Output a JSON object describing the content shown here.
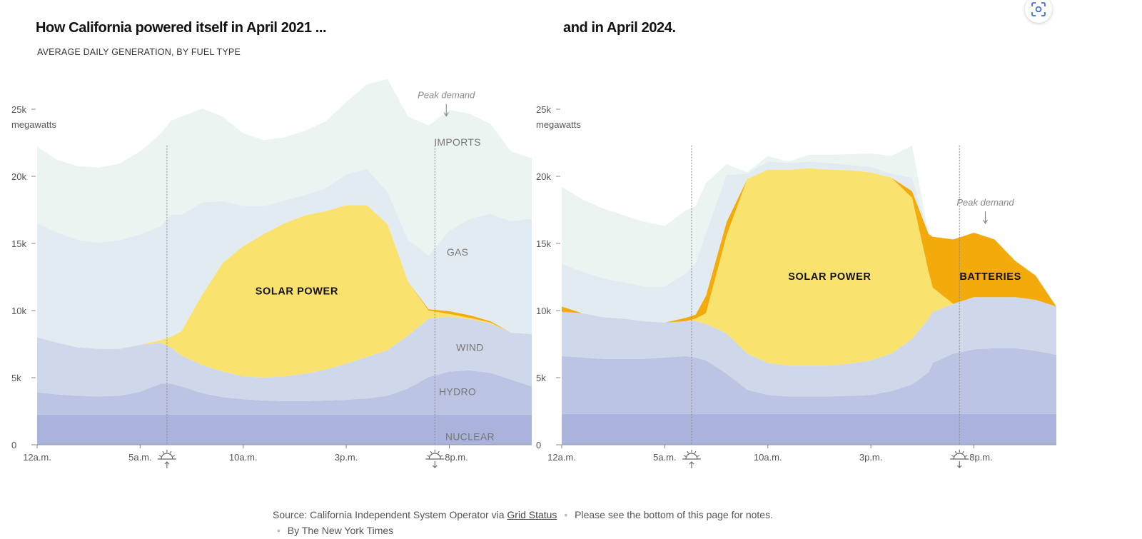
{
  "titles": {
    "left": "How California powered itself in April 2021 ...",
    "right": "and in April 2024."
  },
  "subtitle": "AVERAGE DAILY GENERATION, BY FUEL TYPE",
  "source": {
    "prefix": "Source: California Independent System Operator via",
    "link": "Grid Status",
    "notes": "Please see the bottom of this page for notes.",
    "byline": "By The New York Times"
  },
  "scan_icon": "screenshot-scan-icon",
  "colors": {
    "nuclear": "#a9b3dc",
    "hydro": "#bcc4e3",
    "wind": "#cfd7ea",
    "solar": "#fae26e",
    "batteries": "#f2ab0a",
    "gas": "#e2ebf1",
    "imports": "#ebf4f1"
  },
  "chart_data": [
    {
      "type": "area",
      "stacked": true,
      "title": "How California powered itself in April 2021 ...",
      "subtitle": "AVERAGE DAILY GENERATION, BY FUEL TYPE",
      "ylabel": "megawatts",
      "ylim": [
        0,
        27500
      ],
      "x_range": [
        0,
        24
      ],
      "y_ticks": [
        {
          "value": 0,
          "label": "0"
        },
        {
          "value": 5000,
          "label": "5k"
        },
        {
          "value": 10000,
          "label": "10k"
        },
        {
          "value": 15000,
          "label": "15k"
        },
        {
          "value": 20000,
          "label": "20k"
        },
        {
          "value": 25000,
          "label": "25k"
        }
      ],
      "x_ticks": [
        {
          "value": 0,
          "label": "12a.m."
        },
        {
          "value": 5,
          "label": "5a.m."
        },
        {
          "value": 10,
          "label": "10a.m."
        },
        {
          "value": 15,
          "label": "3p.m."
        },
        {
          "value": 20,
          "label": "8p.m."
        }
      ],
      "sunrise": 6.3,
      "sunset": 19.3,
      "peak_demand": {
        "x": 19.3,
        "label": "Peak demand"
      },
      "x": [
        0,
        1,
        2,
        3,
        4,
        5,
        6,
        6.5,
        7,
        8,
        9,
        10,
        11,
        12,
        13,
        14,
        15,
        16,
        17,
        18,
        19,
        20,
        21,
        22,
        23,
        24
      ],
      "series": [
        {
          "name": "Nuclear",
          "values": [
            2250,
            2250,
            2250,
            2250,
            2250,
            2250,
            2250,
            2250,
            2250,
            2250,
            2250,
            2250,
            2250,
            2250,
            2250,
            2250,
            2250,
            2250,
            2250,
            2250,
            2250,
            2250,
            2250,
            2250,
            2250,
            2250
          ]
        },
        {
          "name": "Hydro",
          "values": [
            1650,
            1500,
            1400,
            1350,
            1400,
            1700,
            2300,
            2300,
            2100,
            1600,
            1300,
            1150,
            1050,
            1000,
            1000,
            1050,
            1100,
            1200,
            1400,
            1950,
            2800,
            3200,
            3300,
            3100,
            2600,
            2100
          ]
        },
        {
          "name": "Wind",
          "values": [
            4100,
            3850,
            3600,
            3550,
            3500,
            3500,
            3050,
            2700,
            2300,
            2100,
            1900,
            1700,
            1700,
            1850,
            2050,
            2300,
            2700,
            3100,
            3400,
            3950,
            4350,
            4100,
            3800,
            3700,
            3500,
            3900
          ]
        },
        {
          "name": "Solar",
          "values": [
            0,
            0,
            0,
            0,
            0,
            0,
            200,
            800,
            1800,
            5200,
            8100,
            9700,
            10700,
            11400,
            11800,
            11800,
            11800,
            11300,
            9400,
            4000,
            600,
            200,
            100,
            50,
            0,
            0
          ]
        },
        {
          "name": "Batteries",
          "values": [
            0,
            0,
            0,
            0,
            0,
            0,
            0,
            0,
            0,
            0,
            0,
            0,
            0,
            0,
            0,
            0,
            0,
            0,
            0,
            0,
            100,
            200,
            200,
            100,
            0,
            0
          ]
        },
        {
          "name": "Gas",
          "values": [
            8500,
            8200,
            8000,
            7900,
            8100,
            8200,
            8500,
            9100,
            8700,
            6900,
            4600,
            3000,
            2100,
            1700,
            1500,
            1700,
            2300,
            2700,
            2400,
            3100,
            4000,
            6000,
            7200,
            8000,
            8300,
            8600
          ]
        },
        {
          "name": "Imports",
          "values": [
            5700,
            5400,
            5500,
            5600,
            5700,
            6200,
            6900,
            7000,
            7300,
            7000,
            6300,
            5400,
            4900,
            4700,
            4800,
            5000,
            5400,
            6300,
            8400,
            9200,
            9700,
            9000,
            7800,
            6700,
            5200,
            4500
          ]
        }
      ],
      "annotations": [
        {
          "text": "IMPORTS",
          "x": 20.4,
          "y": 22300
        },
        {
          "text": "GAS",
          "x": 20.4,
          "y": 14100
        },
        {
          "text": "SOLAR POWER",
          "x": 12.6,
          "y": 11200
        },
        {
          "text": "WIND",
          "x": 21.0,
          "y": 7000
        },
        {
          "text": "HYDRO",
          "x": 20.4,
          "y": 3700
        },
        {
          "text": "NUCLEAR",
          "x": 21.0,
          "y": 350
        }
      ]
    },
    {
      "type": "area",
      "stacked": true,
      "title": "and in April 2024.",
      "ylabel": "megawatts",
      "ylim": [
        0,
        27500
      ],
      "x_range": [
        0,
        24
      ],
      "y_ticks": [
        {
          "value": 0,
          "label": "0"
        },
        {
          "value": 5000,
          "label": "5k"
        },
        {
          "value": 10000,
          "label": "10k"
        },
        {
          "value": 15000,
          "label": "15k"
        },
        {
          "value": 20000,
          "label": "20k"
        },
        {
          "value": 25000,
          "label": "25k"
        }
      ],
      "x_ticks": [
        {
          "value": 0,
          "label": "12a.m."
        },
        {
          "value": 5,
          "label": "5a.m."
        },
        {
          "value": 10,
          "label": "10a.m."
        },
        {
          "value": 15,
          "label": "3p.m."
        },
        {
          "value": 20,
          "label": "8p.m."
        }
      ],
      "sunrise": 6.3,
      "sunset": 19.3,
      "peak_demand": {
        "x": 20.0,
        "label": "Peak demand"
      },
      "x": [
        0,
        1,
        2,
        3,
        4,
        5,
        6,
        6.5,
        7,
        8,
        9,
        10,
        11,
        12,
        13,
        14,
        15,
        16,
        17,
        17.8,
        18,
        19,
        20,
        21,
        22,
        23,
        24
      ],
      "series": [
        {
          "name": "Nuclear",
          "values": [
            2300,
            2300,
            2300,
            2300,
            2300,
            2300,
            2300,
            2300,
            2300,
            2300,
            2300,
            2300,
            2300,
            2300,
            2300,
            2300,
            2300,
            2300,
            2300,
            2300,
            2300,
            2300,
            2300,
            2300,
            2300,
            2300,
            2300
          ]
        },
        {
          "name": "Hydro",
          "values": [
            4300,
            4200,
            4100,
            4100,
            4100,
            4200,
            4300,
            4200,
            4000,
            3000,
            1800,
            1400,
            1300,
            1300,
            1300,
            1350,
            1400,
            1700,
            2200,
            3100,
            3800,
            4500,
            4800,
            4900,
            4900,
            4700,
            4400
          ]
        },
        {
          "name": "Wind",
          "values": [
            3300,
            3300,
            3100,
            3000,
            2800,
            2600,
            2600,
            2700,
            2700,
            3000,
            2700,
            2400,
            2300,
            2300,
            2300,
            2400,
            2600,
            2800,
            3400,
            4000,
            3800,
            3700,
            3900,
            3800,
            3800,
            3800,
            3600
          ]
        },
        {
          "name": "Solar",
          "values": [
            0,
            0,
            0,
            0,
            0,
            0,
            0,
            200,
            800,
            7300,
            13000,
            14400,
            14600,
            14700,
            14600,
            14400,
            14000,
            13100,
            10500,
            3500,
            1800,
            0,
            0,
            0,
            0,
            0,
            0
          ]
        },
        {
          "name": "Batteries",
          "values": [
            400,
            0,
            0,
            0,
            0,
            0,
            250,
            300,
            1300,
            1000,
            0,
            0,
            0,
            0,
            0,
            0,
            0,
            0,
            500,
            2800,
            3800,
            4800,
            4800,
            4300,
            2700,
            1800,
            0
          ]
        },
        {
          "name": "Gas",
          "values": [
            3200,
            3100,
            2900,
            2700,
            2600,
            2700,
            3300,
            3800,
            4700,
            3500,
            400,
            600,
            500,
            500,
            500,
            400,
            400,
            300,
            1000,
            0,
            0,
            0,
            0,
            0,
            0,
            0,
            0
          ]
        },
        {
          "name": "Imports",
          "values": [
            5700,
            5400,
            5200,
            5000,
            4800,
            4500,
            4700,
            4300,
            3700,
            800,
            100,
            400,
            100,
            500,
            600,
            800,
            1000,
            1300,
            2400,
            0,
            0,
            0,
            0,
            0,
            0,
            0,
            0
          ]
        }
      ],
      "annotations": [
        {
          "text": "SOLAR POWER",
          "x": 13.0,
          "y": 12300
        },
        {
          "text": "BATTERIES",
          "x": 20.8,
          "y": 12300
        }
      ]
    }
  ]
}
